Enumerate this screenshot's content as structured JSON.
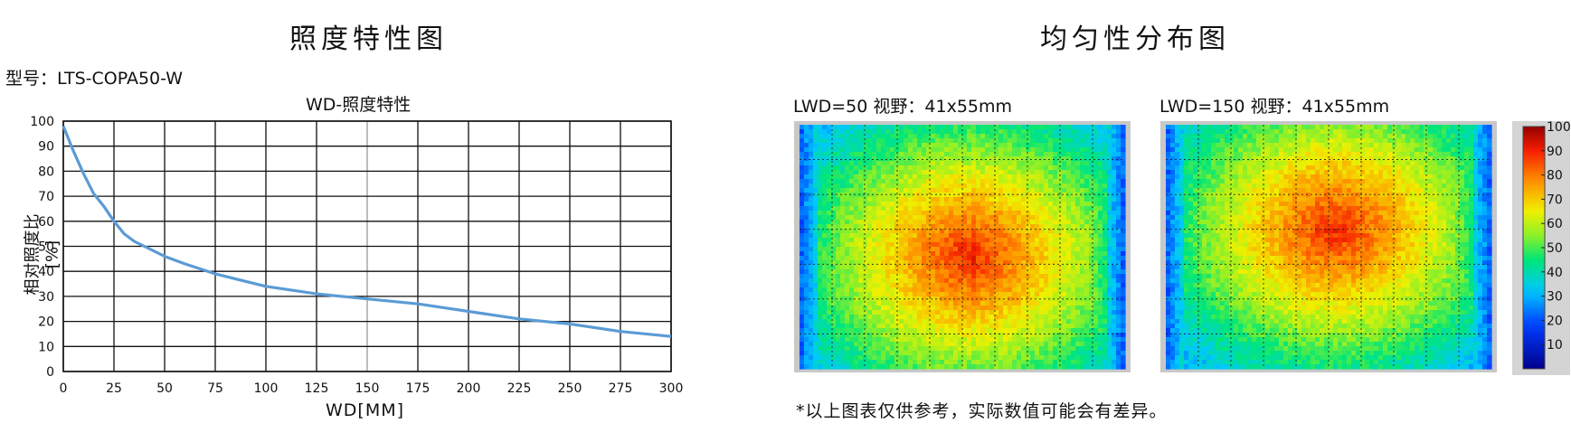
{
  "titles": {
    "left": "照度特性图",
    "right": "均匀性分布图"
  },
  "model_label": "型号：LTS-COPA50-W",
  "note": "*以上图表仅供参考，实际数值可能会有差异。",
  "heatmaps": [
    {
      "label": "LWD=50  视野：41x55mm",
      "center_y_fraction": 0.54
    },
    {
      "label": "LWD=150  视野：41x55mm",
      "center_y_fraction": 0.43
    }
  ],
  "colorbar": {
    "ticks": [
      "100",
      "90",
      "80",
      "70",
      "60",
      "50",
      "40",
      "30",
      "20",
      "10"
    ]
  },
  "chart_data": {
    "type": "line",
    "title": "WD-照度特性",
    "xlabel": "WD[MM]",
    "ylabel": "相对照度比[%]",
    "xlim": [
      0,
      300
    ],
    "ylim": [
      0,
      100
    ],
    "xticks": [
      0,
      25,
      50,
      75,
      100,
      125,
      150,
      175,
      200,
      225,
      250,
      275,
      300
    ],
    "yticks": [
      0,
      10,
      20,
      30,
      40,
      50,
      60,
      70,
      80,
      90,
      100
    ],
    "grid": true,
    "series": [
      {
        "color": "#5b9bd5",
        "x": [
          0,
          5,
          10,
          15,
          20,
          25,
          30,
          35,
          40,
          50,
          60,
          75,
          90,
          100,
          125,
          150,
          175,
          200,
          225,
          250,
          275,
          300
        ],
        "y": [
          98,
          88,
          79,
          71,
          66,
          60,
          55,
          52,
          50,
          46,
          43,
          39,
          36,
          34,
          31,
          29,
          27,
          24,
          21,
          19,
          16,
          14
        ]
      }
    ]
  }
}
